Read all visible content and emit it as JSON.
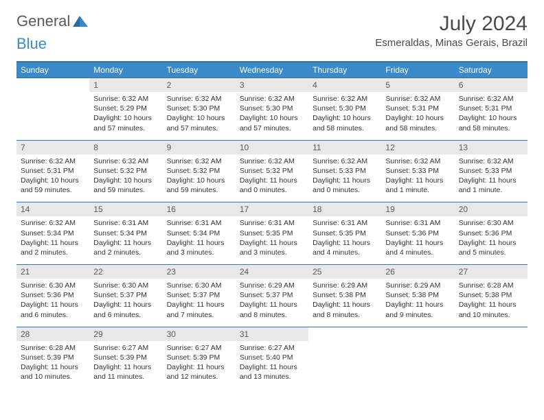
{
  "logo": {
    "text1": "General",
    "text2": "Blue"
  },
  "title": "July 2024",
  "location": "Esmeraldas, Minas Gerais, Brazil",
  "day_headers": [
    "Sunday",
    "Monday",
    "Tuesday",
    "Wednesday",
    "Thursday",
    "Friday",
    "Saturday"
  ],
  "colors": {
    "header_bg": "#3a89c9",
    "header_text": "#ffffff",
    "border": "#3a6fa8",
    "daynum_bg": "#e8e8e8",
    "text": "#333333"
  },
  "weeks": [
    [
      {
        "num": "",
        "sunrise": "",
        "sunset": "",
        "daylight": ""
      },
      {
        "num": "1",
        "sunrise": "Sunrise: 6:32 AM",
        "sunset": "Sunset: 5:29 PM",
        "daylight": "Daylight: 10 hours and 57 minutes."
      },
      {
        "num": "2",
        "sunrise": "Sunrise: 6:32 AM",
        "sunset": "Sunset: 5:30 PM",
        "daylight": "Daylight: 10 hours and 57 minutes."
      },
      {
        "num": "3",
        "sunrise": "Sunrise: 6:32 AM",
        "sunset": "Sunset: 5:30 PM",
        "daylight": "Daylight: 10 hours and 57 minutes."
      },
      {
        "num": "4",
        "sunrise": "Sunrise: 6:32 AM",
        "sunset": "Sunset: 5:30 PM",
        "daylight": "Daylight: 10 hours and 58 minutes."
      },
      {
        "num": "5",
        "sunrise": "Sunrise: 6:32 AM",
        "sunset": "Sunset: 5:31 PM",
        "daylight": "Daylight: 10 hours and 58 minutes."
      },
      {
        "num": "6",
        "sunrise": "Sunrise: 6:32 AM",
        "sunset": "Sunset: 5:31 PM",
        "daylight": "Daylight: 10 hours and 58 minutes."
      }
    ],
    [
      {
        "num": "7",
        "sunrise": "Sunrise: 6:32 AM",
        "sunset": "Sunset: 5:31 PM",
        "daylight": "Daylight: 10 hours and 59 minutes."
      },
      {
        "num": "8",
        "sunrise": "Sunrise: 6:32 AM",
        "sunset": "Sunset: 5:32 PM",
        "daylight": "Daylight: 10 hours and 59 minutes."
      },
      {
        "num": "9",
        "sunrise": "Sunrise: 6:32 AM",
        "sunset": "Sunset: 5:32 PM",
        "daylight": "Daylight: 10 hours and 59 minutes."
      },
      {
        "num": "10",
        "sunrise": "Sunrise: 6:32 AM",
        "sunset": "Sunset: 5:32 PM",
        "daylight": "Daylight: 11 hours and 0 minutes."
      },
      {
        "num": "11",
        "sunrise": "Sunrise: 6:32 AM",
        "sunset": "Sunset: 5:33 PM",
        "daylight": "Daylight: 11 hours and 0 minutes."
      },
      {
        "num": "12",
        "sunrise": "Sunrise: 6:32 AM",
        "sunset": "Sunset: 5:33 PM",
        "daylight": "Daylight: 11 hours and 1 minute."
      },
      {
        "num": "13",
        "sunrise": "Sunrise: 6:32 AM",
        "sunset": "Sunset: 5:33 PM",
        "daylight": "Daylight: 11 hours and 1 minute."
      }
    ],
    [
      {
        "num": "14",
        "sunrise": "Sunrise: 6:32 AM",
        "sunset": "Sunset: 5:34 PM",
        "daylight": "Daylight: 11 hours and 2 minutes."
      },
      {
        "num": "15",
        "sunrise": "Sunrise: 6:31 AM",
        "sunset": "Sunset: 5:34 PM",
        "daylight": "Daylight: 11 hours and 2 minutes."
      },
      {
        "num": "16",
        "sunrise": "Sunrise: 6:31 AM",
        "sunset": "Sunset: 5:34 PM",
        "daylight": "Daylight: 11 hours and 3 minutes."
      },
      {
        "num": "17",
        "sunrise": "Sunrise: 6:31 AM",
        "sunset": "Sunset: 5:35 PM",
        "daylight": "Daylight: 11 hours and 3 minutes."
      },
      {
        "num": "18",
        "sunrise": "Sunrise: 6:31 AM",
        "sunset": "Sunset: 5:35 PM",
        "daylight": "Daylight: 11 hours and 4 minutes."
      },
      {
        "num": "19",
        "sunrise": "Sunrise: 6:31 AM",
        "sunset": "Sunset: 5:36 PM",
        "daylight": "Daylight: 11 hours and 4 minutes."
      },
      {
        "num": "20",
        "sunrise": "Sunrise: 6:30 AM",
        "sunset": "Sunset: 5:36 PM",
        "daylight": "Daylight: 11 hours and 5 minutes."
      }
    ],
    [
      {
        "num": "21",
        "sunrise": "Sunrise: 6:30 AM",
        "sunset": "Sunset: 5:36 PM",
        "daylight": "Daylight: 11 hours and 6 minutes."
      },
      {
        "num": "22",
        "sunrise": "Sunrise: 6:30 AM",
        "sunset": "Sunset: 5:37 PM",
        "daylight": "Daylight: 11 hours and 6 minutes."
      },
      {
        "num": "23",
        "sunrise": "Sunrise: 6:30 AM",
        "sunset": "Sunset: 5:37 PM",
        "daylight": "Daylight: 11 hours and 7 minutes."
      },
      {
        "num": "24",
        "sunrise": "Sunrise: 6:29 AM",
        "sunset": "Sunset: 5:37 PM",
        "daylight": "Daylight: 11 hours and 8 minutes."
      },
      {
        "num": "25",
        "sunrise": "Sunrise: 6:29 AM",
        "sunset": "Sunset: 5:38 PM",
        "daylight": "Daylight: 11 hours and 8 minutes."
      },
      {
        "num": "26",
        "sunrise": "Sunrise: 6:29 AM",
        "sunset": "Sunset: 5:38 PM",
        "daylight": "Daylight: 11 hours and 9 minutes."
      },
      {
        "num": "27",
        "sunrise": "Sunrise: 6:28 AM",
        "sunset": "Sunset: 5:38 PM",
        "daylight": "Daylight: 11 hours and 10 minutes."
      }
    ],
    [
      {
        "num": "28",
        "sunrise": "Sunrise: 6:28 AM",
        "sunset": "Sunset: 5:39 PM",
        "daylight": "Daylight: 11 hours and 10 minutes."
      },
      {
        "num": "29",
        "sunrise": "Sunrise: 6:27 AM",
        "sunset": "Sunset: 5:39 PM",
        "daylight": "Daylight: 11 hours and 11 minutes."
      },
      {
        "num": "30",
        "sunrise": "Sunrise: 6:27 AM",
        "sunset": "Sunset: 5:39 PM",
        "daylight": "Daylight: 11 hours and 12 minutes."
      },
      {
        "num": "31",
        "sunrise": "Sunrise: 6:27 AM",
        "sunset": "Sunset: 5:40 PM",
        "daylight": "Daylight: 11 hours and 13 minutes."
      },
      {
        "num": "",
        "sunrise": "",
        "sunset": "",
        "daylight": ""
      },
      {
        "num": "",
        "sunrise": "",
        "sunset": "",
        "daylight": ""
      },
      {
        "num": "",
        "sunrise": "",
        "sunset": "",
        "daylight": ""
      }
    ]
  ]
}
